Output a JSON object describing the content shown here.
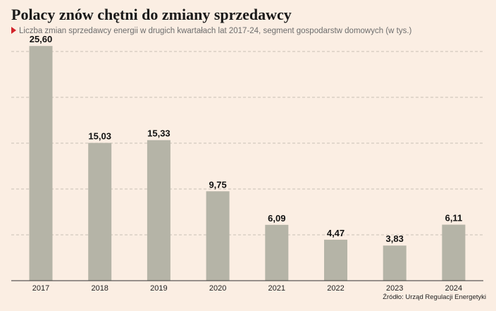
{
  "header": {
    "title": "Polacy znów chętni do zmiany sprzedawcy",
    "subtitle": "Liczba zmian sprzedawcy energii w drugich kwartałach lat 2017-24, segment gospodarstw domowych (w tys.)"
  },
  "footer": {
    "source": "Źródło: Urząd Regulacji Energetyki"
  },
  "colors": {
    "background": "#fbeee3",
    "bar": "#b5b4a7",
    "gridline": "#c9c0b5",
    "accent": "#d2232a"
  },
  "chart_data": {
    "type": "bar",
    "title": "Polacy znów chętni do zmiany sprzedawcy",
    "subtitle": "Liczba zmian sprzedawcy energii w drugich kwartałach lat 2017-24, segment gospodarstw domowych (w tys.)",
    "categories": [
      "2017",
      "2018",
      "2019",
      "2020",
      "2021",
      "2022",
      "2023",
      "2024"
    ],
    "values": [
      25.6,
      15.03,
      15.33,
      9.75,
      6.09,
      4.47,
      3.83,
      6.11
    ],
    "value_labels": [
      "25,60",
      "15,03",
      "15,33",
      "9,75",
      "6,09",
      "4,47",
      "3,83",
      "6,11"
    ],
    "xlabel": "",
    "ylabel": "",
    "ylim": [
      0,
      30
    ],
    "gridlines": [
      5,
      10,
      15,
      20,
      25
    ],
    "grid": true,
    "legend": "none"
  }
}
